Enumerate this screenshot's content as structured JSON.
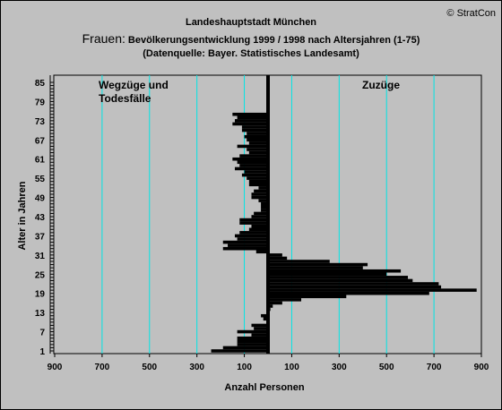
{
  "copyright": "© StratCon",
  "title_line1": "Landeshauptstadt München",
  "title_prefix": "Frauen:",
  "title_line2": " Bevölkerungsentwicklung 1999 / 1998  nach Altersjahren (1-75)",
  "title_line3": "(Datenquelle: Bayer. Statistisches Landesamt)",
  "annotation_left_1": "Wegzüge und",
  "annotation_left_2": "Todesfälle",
  "annotation_right": "Zuzüge",
  "colors": {
    "background": "#c0c0c0",
    "gridline": "#00e5e5",
    "bar": "#000000",
    "left_annotation": "#ff0000",
    "right_annotation": "#008000"
  },
  "chart_data": {
    "type": "bar",
    "orientation": "horizontal",
    "xlabel": "Anzahl Personen",
    "ylabel": "Alter in Jahren",
    "x_ticks": [
      "900",
      "700",
      "500",
      "300",
      "100",
      "100",
      "300",
      "500",
      "700",
      "900"
    ],
    "x_tick_values": [
      -900,
      -700,
      -500,
      -300,
      -100,
      100,
      300,
      500,
      700,
      900
    ],
    "xlim": [
      -900,
      900
    ],
    "y_ticks": [
      1,
      7,
      13,
      19,
      25,
      31,
      37,
      43,
      49,
      55,
      61,
      67,
      73,
      79,
      85
    ],
    "ylim": [
      1,
      85
    ],
    "grid": true,
    "ages": [
      1,
      2,
      3,
      4,
      5,
      6,
      7,
      8,
      9,
      10,
      11,
      12,
      13,
      14,
      15,
      16,
      17,
      18,
      19,
      20,
      21,
      22,
      23,
      24,
      25,
      26,
      27,
      28,
      29,
      30,
      31,
      32,
      33,
      34,
      35,
      36,
      37,
      38,
      39,
      40,
      41,
      42,
      43,
      44,
      45,
      46,
      47,
      48,
      49,
      50,
      51,
      52,
      53,
      54,
      55,
      56,
      57,
      58,
      59,
      60,
      61,
      62,
      63,
      64,
      65,
      66,
      67,
      68,
      69,
      70,
      71,
      72,
      73,
      74,
      75
    ],
    "values": [
      -240,
      -190,
      -130,
      -130,
      -130,
      -70,
      -130,
      -60,
      -70,
      0,
      -20,
      -30,
      0,
      10,
      20,
      60,
      140,
      330,
      680,
      880,
      730,
      720,
      610,
      590,
      500,
      560,
      400,
      420,
      260,
      80,
      60,
      -50,
      -190,
      -170,
      -190,
      -130,
      -140,
      -120,
      -80,
      -70,
      -120,
      -120,
      -70,
      -60,
      -30,
      -30,
      -30,
      -40,
      -70,
      -70,
      -60,
      -40,
      -80,
      -80,
      -90,
      -110,
      -100,
      -140,
      -120,
      -130,
      -150,
      -120,
      -80,
      -90,
      -130,
      -80,
      -90,
      -100,
      -90,
      -110,
      -110,
      -150,
      -140,
      -130,
      -150
    ]
  }
}
